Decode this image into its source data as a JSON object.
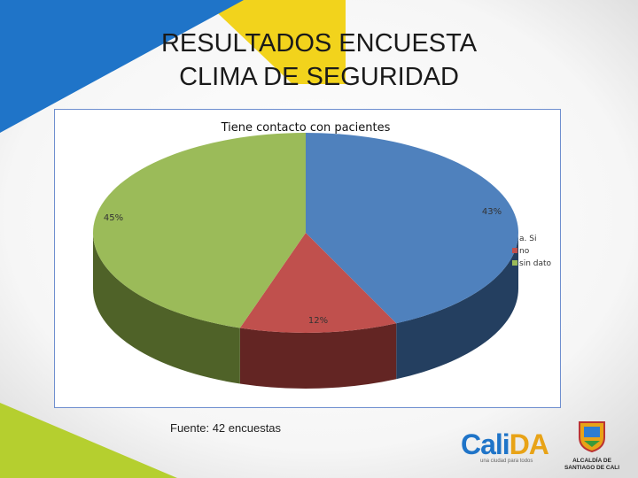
{
  "slide": {
    "title_line1": "RESULTADOS ENCUESTA",
    "title_line2": "CLIMA DE SEGURIDAD",
    "source_note": "Fuente: 42 encuestas"
  },
  "colors": {
    "blue": "#4f81bd",
    "blue_dark": "#243f60",
    "red": "#c0504d",
    "red_dark": "#632523",
    "green": "#9bbb59",
    "green_dark": "#4f6228",
    "deco_yellow": "#f2d31c",
    "deco_blue": "#1f74c8",
    "deco_green": "#b5cf2f"
  },
  "chart_data": {
    "type": "pie",
    "title": "Tiene contacto con pacientes",
    "categories": [
      "a. Si",
      "no",
      "sin dato"
    ],
    "values": [
      43,
      12,
      45
    ],
    "data_labels": [
      "43%",
      "12%",
      "45%"
    ],
    "style": "3d",
    "legend_position": "right"
  },
  "logos": {
    "cali_word_1": "Cali",
    "cali_word_2": "DA",
    "cali_tagline": "una ciudad para todos",
    "alcaldia_line1": "ALCALDÍA DE",
    "alcaldia_line2": "SANTIAGO DE CALI"
  }
}
